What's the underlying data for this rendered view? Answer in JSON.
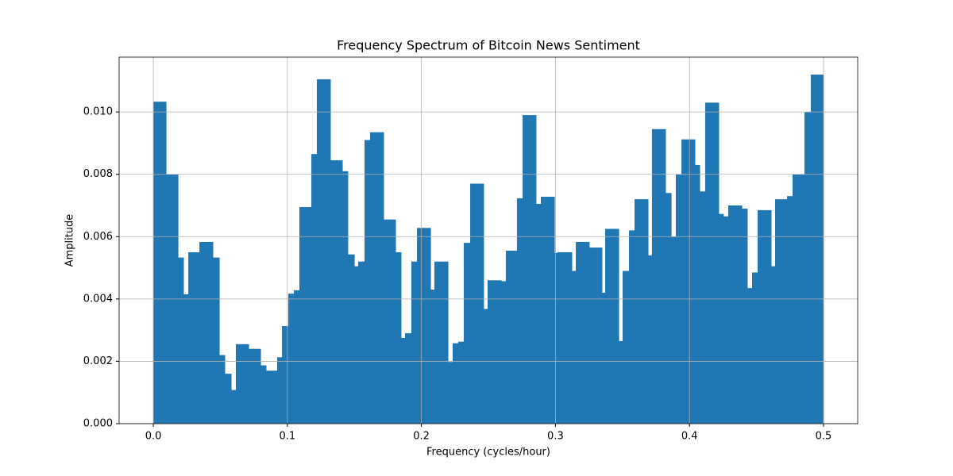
{
  "chart_data": {
    "type": "histogram",
    "title": "Frequency Spectrum of Bitcoin News Sentiment",
    "x_label": "Frequency (cycles/hour)",
    "y_label": "Amplitude",
    "color": "#1f77b4",
    "grid": true,
    "bins": [
      0,
      0.0095,
      0.0184,
      0.0225,
      0.0261,
      0.0344,
      0.0444,
      0.0492,
      0.0533,
      0.0581,
      0.0616,
      0.0711,
      0.08,
      0.0841,
      0.0924,
      0.096,
      0.1007,
      0.1049,
      0.109,
      0.1179,
      0.122,
      0.1321,
      0.141,
      0.1451,
      0.1499,
      0.1528,
      0.1576,
      0.1617,
      0.1718,
      0.1807,
      0.1848,
      0.1878,
      0.1925,
      0.1967,
      0.2068,
      0.2097,
      0.2198,
      0.2233,
      0.2275,
      0.2316,
      0.2364,
      0.2464,
      0.2494,
      0.2595,
      0.263,
      0.2713,
      0.2755,
      0.2855,
      0.2891,
      0.2992,
      0.3016,
      0.3122,
      0.3152,
      0.3252,
      0.3347,
      0.3371,
      0.3472,
      0.3501,
      0.3549,
      0.359,
      0.3691,
      0.372,
      0.3821,
      0.3863,
      0.3898,
      0.394,
      0.404,
      0.4076,
      0.4117,
      0.4218,
      0.4253,
      0.4289,
      0.439,
      0.4431,
      0.4467,
      0.4508,
      0.4609,
      0.4639,
      0.4728,
      0.4769,
      0.4858,
      0.4905,
      0.5
    ],
    "values": [
      0.01033,
      0.008,
      0.00533,
      0.00415,
      0.0055,
      0.00583,
      0.00533,
      0.0022,
      0.0016,
      0.00108,
      0.00255,
      0.0024,
      0.00187,
      0.0017,
      0.00213,
      0.00313,
      0.00417,
      0.00428,
      0.00695,
      0.00865,
      0.01105,
      0.00845,
      0.0081,
      0.00543,
      0.00505,
      0.0052,
      0.0091,
      0.00935,
      0.00655,
      0.0055,
      0.00275,
      0.0029,
      0.0052,
      0.00628,
      0.0043,
      0.0052,
      0.00198,
      0.00258,
      0.00263,
      0.0058,
      0.0077,
      0.00368,
      0.0046,
      0.00457,
      0.00555,
      0.00723,
      0.0099,
      0.00705,
      0.00728,
      0.00548,
      0.0055,
      0.0049,
      0.00583,
      0.00565,
      0.0042,
      0.00625,
      0.00265,
      0.0049,
      0.0062,
      0.0072,
      0.0054,
      0.00945,
      0.0074,
      0.006,
      0.008,
      0.00912,
      0.0083,
      0.00745,
      0.0103,
      0.00673,
      0.00665,
      0.007,
      0.0069,
      0.00435,
      0.00485,
      0.00685,
      0.00505,
      0.0072,
      0.0073,
      0.008,
      0.01,
      0.0112
    ],
    "xlim": [
      -0.0255,
      0.5255
    ],
    "xticks": [
      {
        "value": 0,
        "label": "0.0"
      },
      0.1,
      0.2,
      0.3,
      0.4,
      0.5
    ],
    "ylim": [
      0,
      0.01176
    ],
    "yticks": [
      {
        "value": 0,
        "label": "0.000"
      },
      {
        "value": 0.002,
        "label": "0.002"
      },
      {
        "value": 0.004,
        "label": "0.004"
      },
      {
        "value": 0.006,
        "label": "0.006"
      },
      {
        "value": 0.008,
        "label": "0.008"
      },
      {
        "value": 0.01,
        "label": "0.010"
      }
    ]
  }
}
